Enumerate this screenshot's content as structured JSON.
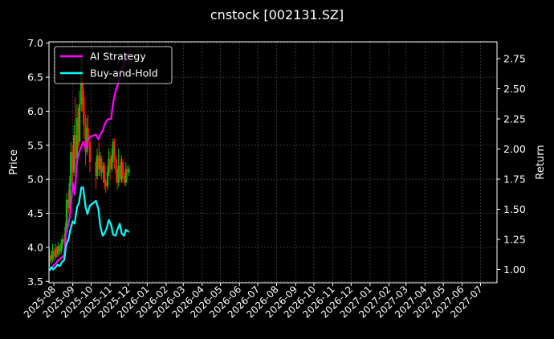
{
  "chart_data": {
    "type": "line",
    "title": "cnstock [002131.SZ]",
    "ylabel_left": "Price",
    "ylabel_right": "Return",
    "xlabel": "",
    "grid": true,
    "legend_position": "top-left",
    "left_axis": {
      "ylim": [
        3.48,
        7.02
      ],
      "ticks": [
        3.5,
        4.0,
        4.5,
        5.0,
        5.5,
        6.0,
        6.5,
        7.0
      ],
      "tick_labels": [
        "3.5",
        "4.0",
        "4.5",
        "5.0",
        "5.5",
        "6.0",
        "6.5",
        "7.0"
      ]
    },
    "right_axis": {
      "ylim": [
        0.89,
        2.89
      ],
      "ticks": [
        1.0,
        1.25,
        1.5,
        1.75,
        2.0,
        2.25,
        2.5,
        2.75
      ],
      "tick_labels": [
        "1.00",
        "1.25",
        "1.50",
        "1.75",
        "2.00",
        "2.25",
        "2.50",
        "2.75"
      ]
    },
    "x_axis": {
      "range": [
        "2025-07-24",
        "2027-07-28"
      ],
      "tick_dates": [
        "2025-08-01",
        "2025-09-01",
        "2025-10-01",
        "2025-11-01",
        "2025-12-01",
        "2026-01-01",
        "2026-02-01",
        "2026-03-01",
        "2026-04-01",
        "2026-05-01",
        "2026-06-01",
        "2026-07-01",
        "2026-08-01",
        "2026-09-01",
        "2026-10-01",
        "2026-11-01",
        "2026-12-01",
        "2027-01-01",
        "2027-02-01",
        "2027-03-01",
        "2027-04-01",
        "2027-05-01",
        "2027-06-01",
        "2027-07-01"
      ],
      "tick_labels": [
        "2025-08",
        "2025-09",
        "2025-10",
        "2025-11",
        "2025-12",
        "2026-01",
        "2026-02",
        "2026-03",
        "2026-04",
        "2026-05",
        "2026-06",
        "2026-07",
        "2026-08",
        "2026-09",
        "2026-10",
        "2026-11",
        "2026-12",
        "2027-01",
        "2027-02",
        "2027-03",
        "2027-04",
        "2027-05",
        "2027-06",
        "2027-07"
      ]
    },
    "candles_up_color": "#00c000",
    "candles_down_color": "#ff2000",
    "candles": [
      {
        "date": "2025-07-25",
        "open": 3.78,
        "close": 3.88,
        "high": 3.98,
        "low": 3.72
      },
      {
        "date": "2025-07-28",
        "open": 3.88,
        "close": 3.82,
        "high": 3.95,
        "low": 3.75
      },
      {
        "date": "2025-07-30",
        "open": 3.82,
        "close": 3.95,
        "high": 4.05,
        "low": 3.78
      },
      {
        "date": "2025-08-01",
        "open": 3.95,
        "close": 3.86,
        "high": 4.0,
        "low": 3.8
      },
      {
        "date": "2025-08-04",
        "open": 3.86,
        "close": 3.98,
        "high": 4.05,
        "low": 3.82
      },
      {
        "date": "2025-08-06",
        "open": 3.98,
        "close": 3.9,
        "high": 4.02,
        "low": 3.85
      },
      {
        "date": "2025-08-08",
        "open": 3.9,
        "close": 4.02,
        "high": 4.08,
        "low": 3.86
      },
      {
        "date": "2025-08-11",
        "open": 4.02,
        "close": 3.94,
        "high": 4.06,
        "low": 3.88
      },
      {
        "date": "2025-08-13",
        "open": 3.94,
        "close": 4.05,
        "high": 4.12,
        "low": 3.9
      },
      {
        "date": "2025-08-15",
        "open": 4.05,
        "close": 4.12,
        "high": 4.18,
        "low": 3.98
      },
      {
        "date": "2025-08-18",
        "open": 4.12,
        "close": 4.08,
        "high": 4.2,
        "low": 4.02
      },
      {
        "date": "2025-08-20",
        "open": 4.08,
        "close": 4.3,
        "high": 4.36,
        "low": 4.05
      },
      {
        "date": "2025-08-22",
        "open": 4.3,
        "close": 4.7,
        "high": 4.8,
        "low": 4.28
      },
      {
        "date": "2025-08-25",
        "open": 4.7,
        "close": 4.58,
        "high": 4.85,
        "low": 4.5
      },
      {
        "date": "2025-08-27",
        "open": 4.58,
        "close": 4.95,
        "high": 5.05,
        "low": 4.55
      },
      {
        "date": "2025-08-29",
        "open": 4.95,
        "close": 5.4,
        "high": 5.55,
        "low": 4.9
      },
      {
        "date": "2025-09-01",
        "open": 5.4,
        "close": 5.1,
        "high": 5.5,
        "low": 4.95
      },
      {
        "date": "2025-09-03",
        "open": 5.1,
        "close": 5.65,
        "high": 5.8,
        "low": 5.05
      },
      {
        "date": "2025-09-05",
        "open": 5.65,
        "close": 5.3,
        "high": 6.2,
        "low": 5.15
      },
      {
        "date": "2025-09-08",
        "open": 5.3,
        "close": 5.9,
        "high": 6.1,
        "low": 5.2
      },
      {
        "date": "2025-09-10",
        "open": 5.9,
        "close": 5.55,
        "high": 6.05,
        "low": 5.45
      },
      {
        "date": "2025-09-12",
        "open": 5.55,
        "close": 6.1,
        "high": 6.3,
        "low": 5.5
      },
      {
        "date": "2025-09-15",
        "open": 6.1,
        "close": 6.6,
        "high": 6.8,
        "low": 6.0
      },
      {
        "date": "2025-09-17",
        "open": 6.6,
        "close": 6.2,
        "high": 6.75,
        "low": 6.0
      },
      {
        "date": "2025-09-19",
        "open": 6.2,
        "close": 5.8,
        "high": 6.3,
        "low": 5.6
      },
      {
        "date": "2025-09-22",
        "open": 5.8,
        "close": 5.4,
        "high": 5.95,
        "low": 5.2
      },
      {
        "date": "2025-09-24",
        "open": 5.4,
        "close": 5.75,
        "high": 5.9,
        "low": 5.35
      },
      {
        "date": "2025-09-26",
        "open": 5.75,
        "close": 5.55,
        "high": 5.95,
        "low": 5.45
      },
      {
        "date": "2025-09-29",
        "open": 5.55,
        "close": 5.25,
        "high": 5.65,
        "low": 5.1
      },
      {
        "date": "2025-10-09",
        "open": 5.25,
        "close": 5.05,
        "high": 5.3,
        "low": 4.85
      },
      {
        "date": "2025-10-11",
        "open": 5.05,
        "close": 5.35,
        "high": 5.45,
        "low": 5.0
      },
      {
        "date": "2025-10-14",
        "open": 5.35,
        "close": 5.15,
        "high": 5.55,
        "low": 5.05
      },
      {
        "date": "2025-10-16",
        "open": 5.15,
        "close": 5.3,
        "high": 5.4,
        "low": 5.05
      },
      {
        "date": "2025-10-18",
        "open": 5.3,
        "close": 5.1,
        "high": 5.35,
        "low": 5.0
      },
      {
        "date": "2025-10-21",
        "open": 5.1,
        "close": 5.2,
        "high": 5.25,
        "low": 4.95
      },
      {
        "date": "2025-10-23",
        "open": 5.2,
        "close": 4.95,
        "high": 5.25,
        "low": 4.85
      },
      {
        "date": "2025-10-25",
        "open": 4.95,
        "close": 4.9,
        "high": 5.0,
        "low": 4.8
      },
      {
        "date": "2025-10-28",
        "open": 4.9,
        "close": 5.1,
        "high": 5.2,
        "low": 4.85
      },
      {
        "date": "2025-10-30",
        "open": 5.1,
        "close": 5.3,
        "high": 5.45,
        "low": 5.05
      },
      {
        "date": "2025-11-01",
        "open": 5.3,
        "close": 5.15,
        "high": 5.4,
        "low": 5.0
      },
      {
        "date": "2025-11-04",
        "open": 5.15,
        "close": 5.35,
        "high": 5.45,
        "low": 5.1
      },
      {
        "date": "2025-11-06",
        "open": 5.35,
        "close": 5.55,
        "high": 5.6,
        "low": 5.25
      },
      {
        "date": "2025-11-08",
        "open": 5.55,
        "close": 5.3,
        "high": 5.6,
        "low": 5.15
      },
      {
        "date": "2025-11-11",
        "open": 5.3,
        "close": 5.1,
        "high": 5.35,
        "low": 4.95
      },
      {
        "date": "2025-11-13",
        "open": 5.1,
        "close": 4.95,
        "high": 5.15,
        "low": 4.85
      },
      {
        "date": "2025-11-15",
        "open": 4.95,
        "close": 5.2,
        "high": 5.45,
        "low": 4.9
      },
      {
        "date": "2025-11-18",
        "open": 5.2,
        "close": 5.0,
        "high": 5.3,
        "low": 4.95
      },
      {
        "date": "2025-11-20",
        "open": 5.0,
        "close": 5.25,
        "high": 5.35,
        "low": 4.95
      },
      {
        "date": "2025-11-22",
        "open": 5.25,
        "close": 5.05,
        "high": 5.3,
        "low": 4.95
      },
      {
        "date": "2025-11-25",
        "open": 5.05,
        "close": 4.95,
        "high": 5.1,
        "low": 4.9
      },
      {
        "date": "2025-11-27",
        "open": 4.95,
        "close": 5.15,
        "high": 5.25,
        "low": 4.9
      },
      {
        "date": "2025-11-29",
        "open": 5.15,
        "close": 5.1,
        "high": 5.2,
        "low": 5.0
      },
      {
        "date": "2025-12-02",
        "open": 5.1,
        "close": 5.15,
        "high": 5.2,
        "low": 5.05
      }
    ],
    "series": [
      {
        "name": "AI Strategy",
        "color": "#ff00ff",
        "axis": "right",
        "points": [
          [
            "2025-07-25",
            1.0
          ],
          [
            "2025-07-28",
            1.01
          ],
          [
            "2025-07-31",
            1.03
          ],
          [
            "2025-08-04",
            1.05
          ],
          [
            "2025-08-07",
            1.07
          ],
          [
            "2025-08-11",
            1.09
          ],
          [
            "2025-08-14",
            1.1
          ],
          [
            "2025-08-18",
            1.12
          ],
          [
            "2025-08-21",
            1.3
          ],
          [
            "2025-08-25",
            1.38
          ],
          [
            "2025-08-28",
            1.48
          ],
          [
            "2025-09-01",
            1.72
          ],
          [
            "2025-09-04",
            1.62
          ],
          [
            "2025-09-08",
            1.9
          ],
          [
            "2025-09-11",
            1.97
          ],
          [
            "2025-09-15",
            2.02
          ],
          [
            "2025-09-18",
            2.06
          ],
          [
            "2025-09-22",
            2.0
          ],
          [
            "2025-09-25",
            2.07
          ],
          [
            "2025-09-29",
            2.1
          ],
          [
            "2025-10-09",
            2.12
          ],
          [
            "2025-10-13",
            2.08
          ],
          [
            "2025-10-16",
            2.12
          ],
          [
            "2025-10-20",
            2.15
          ],
          [
            "2025-10-23",
            2.2
          ],
          [
            "2025-10-27",
            2.24
          ],
          [
            "2025-10-30",
            2.25
          ],
          [
            "2025-11-03",
            2.25
          ],
          [
            "2025-11-06",
            2.38
          ],
          [
            "2025-11-10",
            2.48
          ],
          [
            "2025-11-13",
            2.52
          ],
          [
            "2025-11-17",
            2.6
          ],
          [
            "2025-11-20",
            2.66
          ],
          [
            "2025-11-24",
            2.7
          ],
          [
            "2025-11-27",
            2.76
          ],
          [
            "2025-12-02",
            2.8
          ]
        ]
      },
      {
        "name": "Buy-and-Hold",
        "color": "#00ffff",
        "axis": "right",
        "points": [
          [
            "2025-07-25",
            0.99
          ],
          [
            "2025-07-28",
            1.02
          ],
          [
            "2025-07-31",
            1.0
          ],
          [
            "2025-08-04",
            1.02
          ],
          [
            "2025-08-07",
            1.04
          ],
          [
            "2025-08-11",
            1.03
          ],
          [
            "2025-08-14",
            1.06
          ],
          [
            "2025-08-18",
            1.08
          ],
          [
            "2025-08-21",
            1.2
          ],
          [
            "2025-08-25",
            1.25
          ],
          [
            "2025-08-28",
            1.33
          ],
          [
            "2025-09-01",
            1.4
          ],
          [
            "2025-09-04",
            1.38
          ],
          [
            "2025-09-08",
            1.52
          ],
          [
            "2025-09-11",
            1.55
          ],
          [
            "2025-09-15",
            1.68
          ],
          [
            "2025-09-18",
            1.68
          ],
          [
            "2025-09-22",
            1.52
          ],
          [
            "2025-09-25",
            1.46
          ],
          [
            "2025-09-29",
            1.53
          ],
          [
            "2025-10-09",
            1.57
          ],
          [
            "2025-10-13",
            1.5
          ],
          [
            "2025-10-16",
            1.36
          ],
          [
            "2025-10-20",
            1.28
          ],
          [
            "2025-10-23",
            1.3
          ],
          [
            "2025-10-27",
            1.35
          ],
          [
            "2025-10-30",
            1.41
          ],
          [
            "2025-11-03",
            1.37
          ],
          [
            "2025-11-06",
            1.29
          ],
          [
            "2025-11-10",
            1.28
          ],
          [
            "2025-11-13",
            1.33
          ],
          [
            "2025-11-17",
            1.38
          ],
          [
            "2025-11-20",
            1.3
          ],
          [
            "2025-11-24",
            1.28
          ],
          [
            "2025-11-27",
            1.33
          ],
          [
            "2025-12-02",
            1.31
          ]
        ]
      }
    ]
  }
}
